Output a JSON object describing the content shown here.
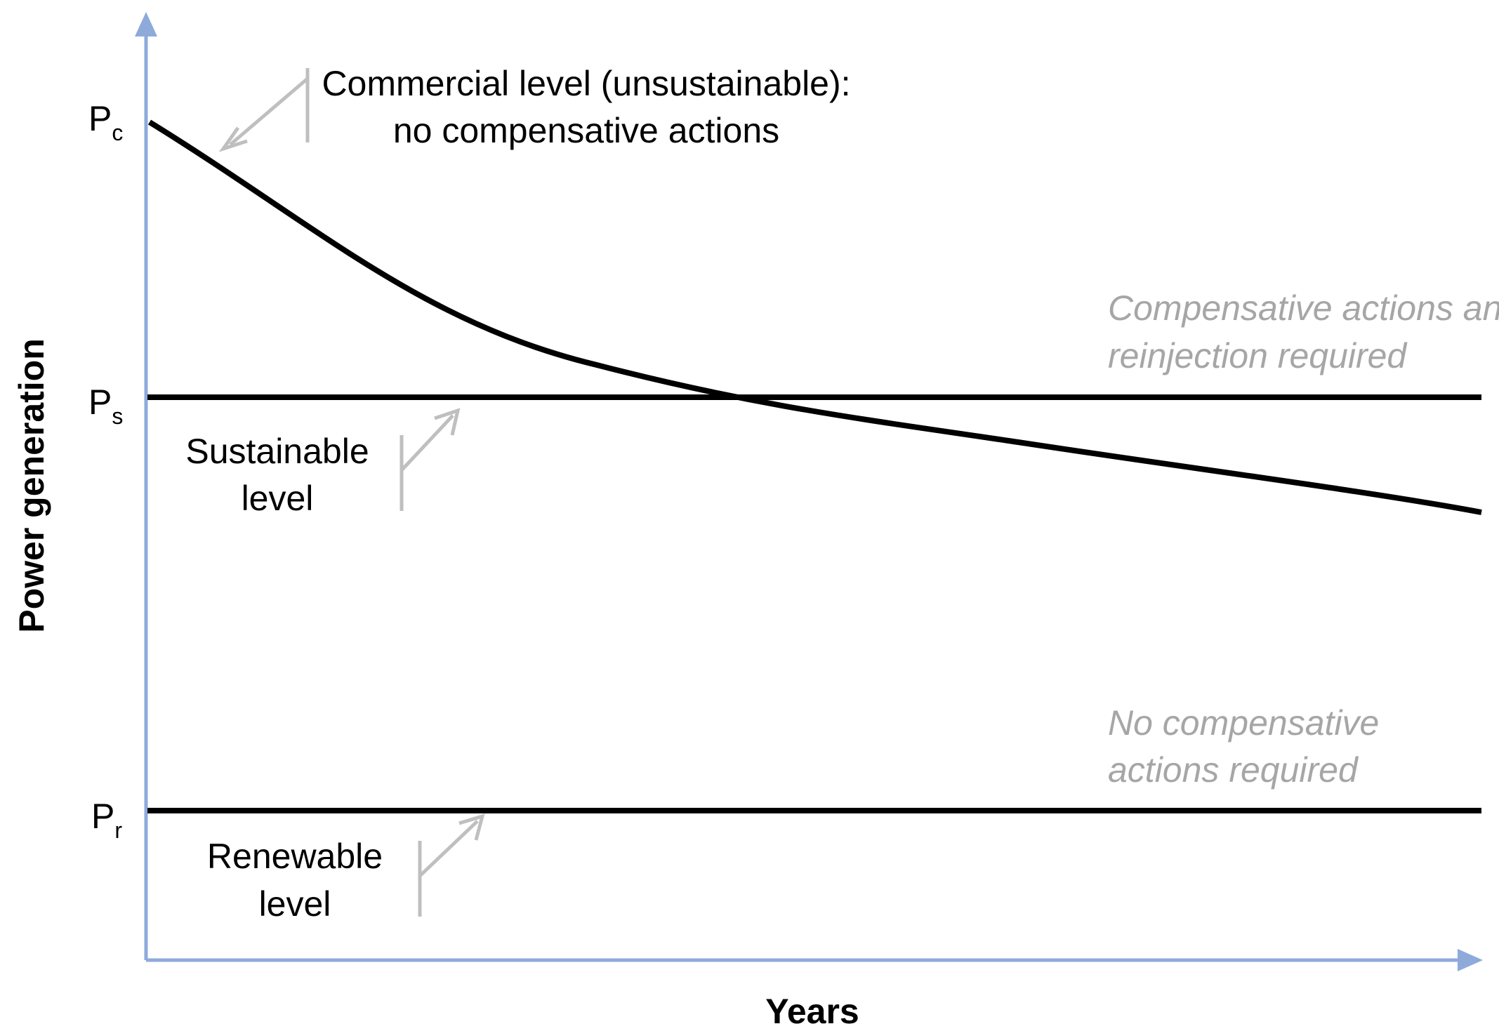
{
  "axes": {
    "y_title": "Power generation",
    "x_title": "Years"
  },
  "levels": {
    "commercial": {
      "symbol": "P",
      "subscript": "c"
    },
    "sustainable": {
      "symbol": "P",
      "subscript": "s"
    },
    "renewable": {
      "symbol": "P",
      "subscript": "r"
    }
  },
  "labels": {
    "commercial_line1": "Commercial level (unsustainable):",
    "commercial_line2": "no compensative actions",
    "sustainable_line1": "Sustainable",
    "sustainable_line2": "level",
    "renewable_line1": "Renewable",
    "renewable_line2": "level"
  },
  "notes": {
    "compensative_line1": "Compensative actions and",
    "compensative_line2": "reinjection required",
    "none_line1": "No compensative",
    "none_line2": "actions required"
  },
  "colors": {
    "axis": "#8eaadb",
    "curve": "#000000",
    "pointer": "#bfbfbf",
    "note_text": "#a6a6a6"
  }
}
